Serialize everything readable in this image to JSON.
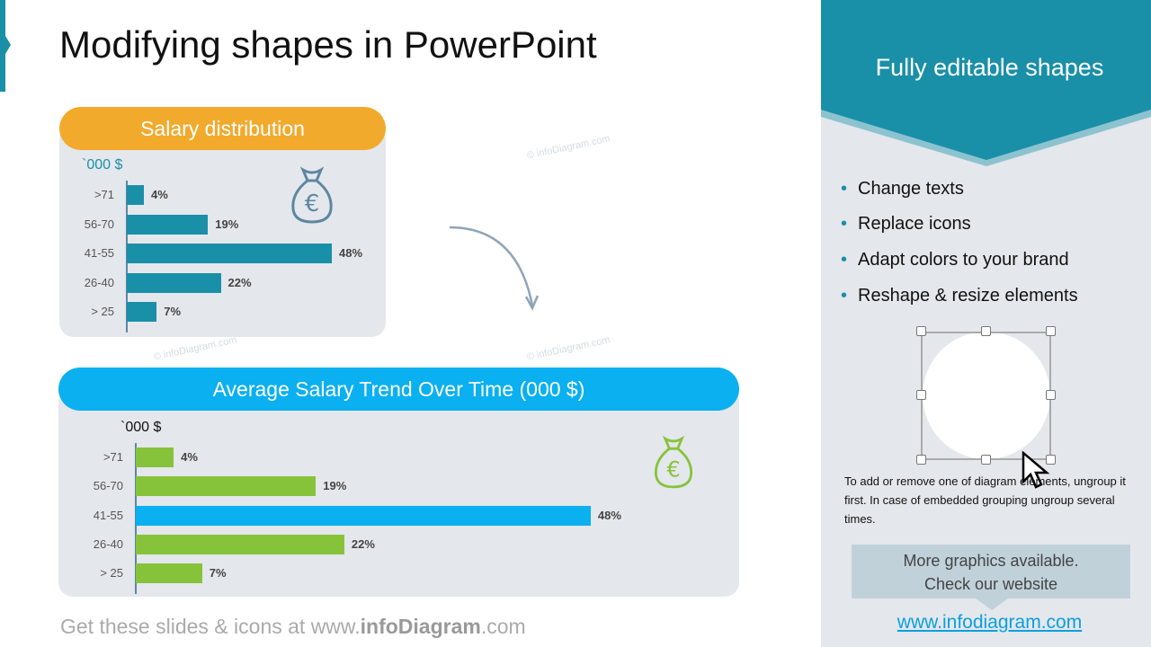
{
  "title": "Modifying shapes in PowerPoint",
  "watermark": "© infoDiagram.com",
  "chart_data": [
    {
      "type": "bar",
      "orientation": "horizontal",
      "title": "Salary distribution",
      "unit_label": "`000 $",
      "categories": [
        ">71",
        "56-70",
        "41-55",
        "26-40",
        "> 25"
      ],
      "values": [
        4,
        19,
        48,
        22,
        7
      ],
      "value_labels": [
        "4%",
        "19%",
        "48%",
        "22%",
        "7%"
      ],
      "colors": [
        "#1a8fa8",
        "#1a8fa8",
        "#1a8fa8",
        "#1a8fa8",
        "#1a8fa8"
      ],
      "header_color": "#f2aa2c",
      "icon": "money-bag-euro-icon"
    },
    {
      "type": "bar",
      "orientation": "horizontal",
      "title": "Average Salary Trend Over Time (000 $)",
      "unit_label": "`000 $",
      "categories": [
        ">71",
        "56-70",
        "41-55",
        "26-40",
        "> 25"
      ],
      "values": [
        4,
        19,
        48,
        22,
        7
      ],
      "value_labels": [
        "4%",
        "19%",
        "48%",
        "22%",
        "7%"
      ],
      "colors": [
        "#86c33a",
        "#86c33a",
        "#0ab0f0",
        "#86c33a",
        "#86c33a"
      ],
      "header_color": "#0ab0f0",
      "icon": "money-bag-euro-icon"
    }
  ],
  "footer": {
    "prefix": "Get these slides & icons at www.",
    "brand": "infoDiagram",
    "suffix": ".com"
  },
  "side": {
    "banner": "Fully editable shapes",
    "bullets": [
      "Change texts",
      "Replace icons",
      "Adapt colors to your brand",
      "Reshape & resize elements"
    ],
    "note": "To add or remove one of diagram elements, ungroup it first. In case of embedded grouping ungroup several times.",
    "more": "More graphics available. Check our website",
    "link": "www.infodiagram.com"
  },
  "colors": {
    "teal": "#1a8fa8",
    "orange": "#f2aa2c",
    "blue": "#0ab0f0",
    "green": "#86c33a"
  }
}
